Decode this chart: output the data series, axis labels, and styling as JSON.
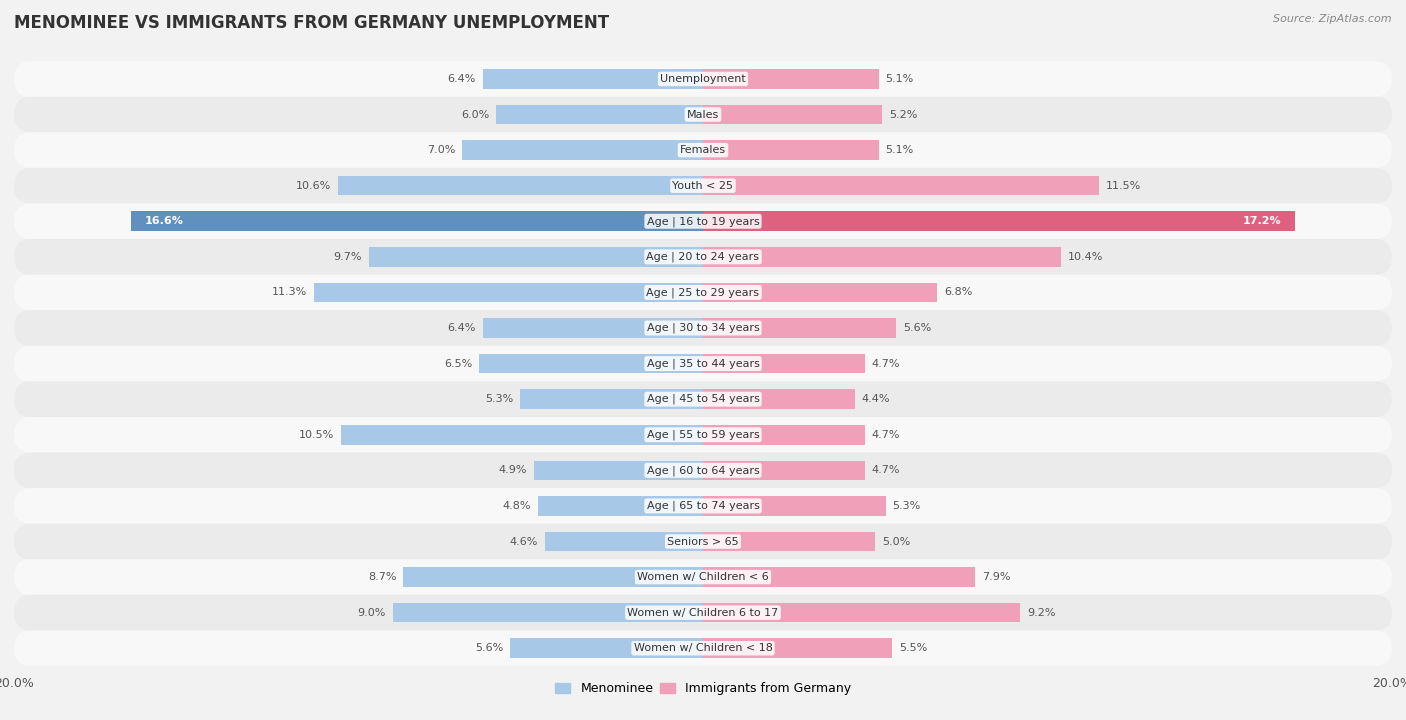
{
  "title": "MENOMINEE VS IMMIGRANTS FROM GERMANY UNEMPLOYMENT",
  "source": "Source: ZipAtlas.com",
  "categories": [
    "Unemployment",
    "Males",
    "Females",
    "Youth < 25",
    "Age | 16 to 19 years",
    "Age | 20 to 24 years",
    "Age | 25 to 29 years",
    "Age | 30 to 34 years",
    "Age | 35 to 44 years",
    "Age | 45 to 54 years",
    "Age | 55 to 59 years",
    "Age | 60 to 64 years",
    "Age | 65 to 74 years",
    "Seniors > 65",
    "Women w/ Children < 6",
    "Women w/ Children 6 to 17",
    "Women w/ Children < 18"
  ],
  "left_values": [
    6.4,
    6.0,
    7.0,
    10.6,
    16.6,
    9.7,
    11.3,
    6.4,
    6.5,
    5.3,
    10.5,
    4.9,
    4.8,
    4.6,
    8.7,
    9.0,
    5.6
  ],
  "right_values": [
    5.1,
    5.2,
    5.1,
    11.5,
    17.2,
    10.4,
    6.8,
    5.6,
    4.7,
    4.4,
    4.7,
    4.7,
    5.3,
    5.0,
    7.9,
    9.2,
    5.5
  ],
  "left_color": "#a8c8e8",
  "right_color": "#f0a0b8",
  "highlight_left_color": "#6090c0",
  "highlight_right_color": "#e06080",
  "axis_max": 20.0,
  "background_color": "#f2f2f2",
  "row_bg_light": "#f8f8f8",
  "row_bg_dark": "#ebebeb",
  "legend_left": "Menominee",
  "legend_right": "Immigrants from Germany",
  "title_fontsize": 12,
  "source_fontsize": 8,
  "label_fontsize": 8,
  "category_fontsize": 8
}
